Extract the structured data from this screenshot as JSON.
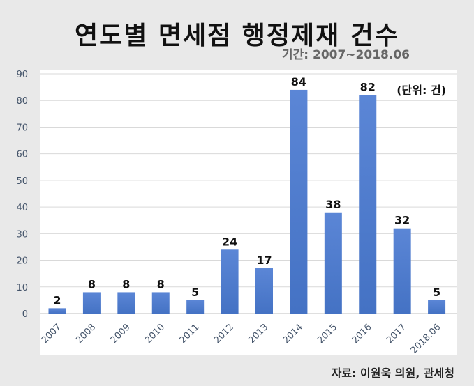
{
  "colors": {
    "bar": "#4472c4",
    "bar_light": "#5b86d6",
    "grid": "#d9d9d9",
    "tick": "#44546a"
  },
  "chart_data": {
    "type": "bar",
    "title": "연도별 면세점 행정제재 건수",
    "subtitle": "기간: 2007~2018.06",
    "unit_note": "(단위: 건)",
    "source": "자료: 이원욱 의원, 관세청",
    "categories": [
      "2007",
      "2008",
      "2009",
      "2010",
      "2011",
      "2012",
      "2013",
      "2014",
      "2015",
      "2016",
      "2017",
      "2018.06"
    ],
    "values": [
      2,
      8,
      8,
      8,
      5,
      24,
      17,
      84,
      38,
      82,
      32,
      5
    ],
    "ylim": [
      0,
      90
    ],
    "yticks": [
      "0",
      "10",
      "20",
      "30",
      "40",
      "50",
      "60",
      "70",
      "80",
      "90"
    ],
    "grid": true
  }
}
